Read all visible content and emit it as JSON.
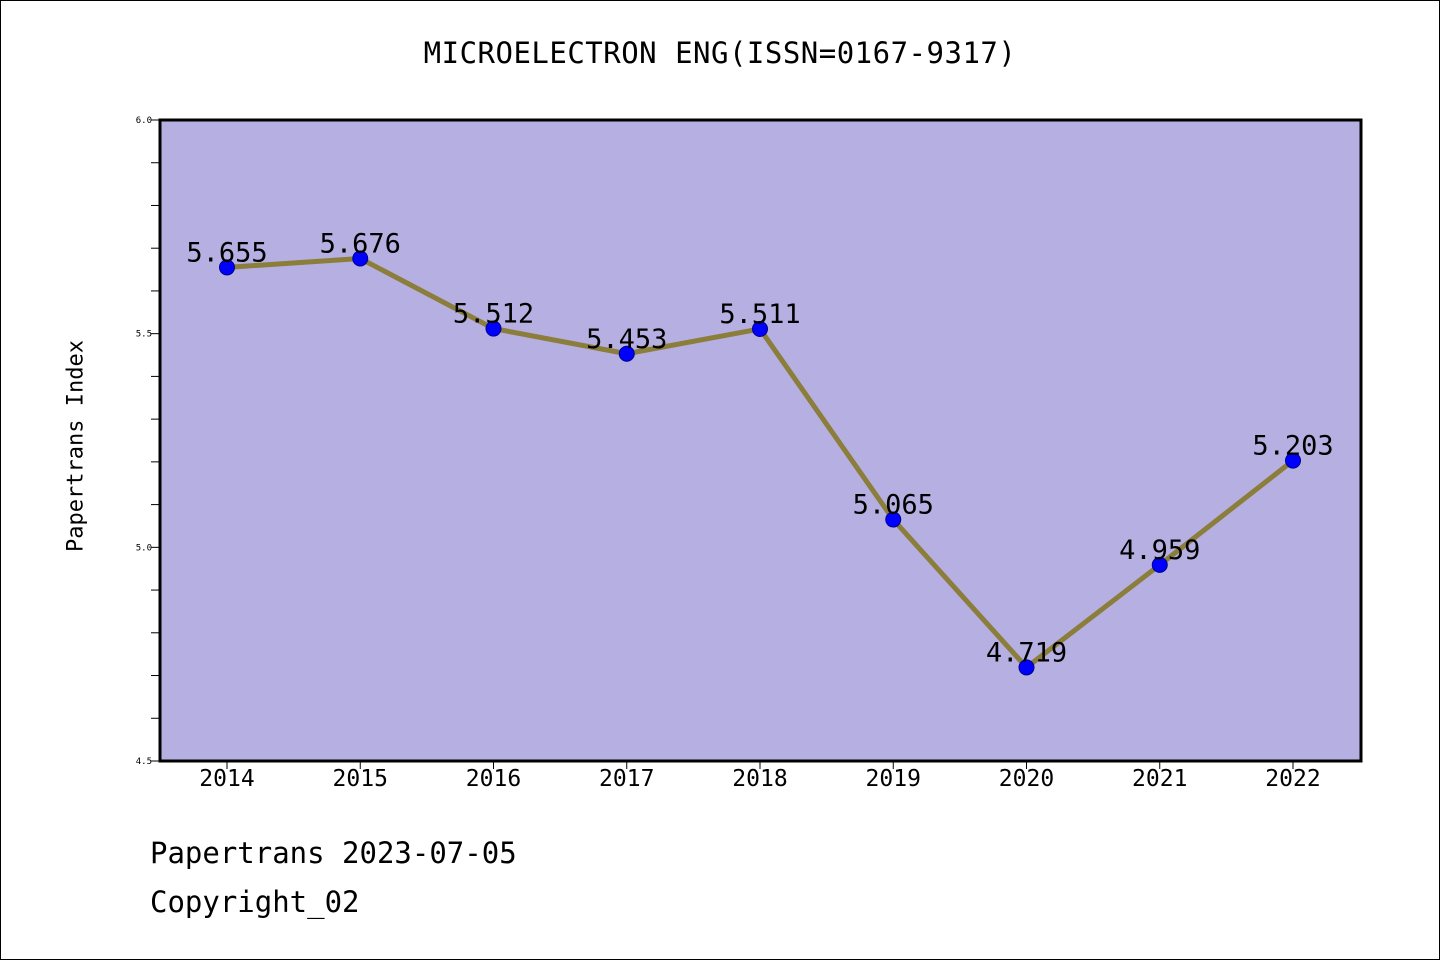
{
  "chart_data": {
    "type": "line",
    "title": "MICROELECTRON ENG(ISSN=0167-9317)",
    "xlabel": "",
    "ylabel": "Papertrans Index",
    "categories": [
      "2014",
      "2015",
      "2016",
      "2017",
      "2018",
      "2019",
      "2020",
      "2021",
      "2022"
    ],
    "values": [
      5.655,
      5.676,
      5.512,
      5.453,
      5.511,
      5.065,
      4.719,
      4.959,
      5.203
    ],
    "data_labels": [
      "5.655",
      "5.676",
      "5.512",
      "5.453",
      "5.511",
      "5.065",
      "4.719",
      "4.959",
      "5.203"
    ],
    "ylim": [
      4.5,
      6.0
    ],
    "yticks": [
      "4.5",
      "5.0",
      "5.5",
      "6.0"
    ],
    "grid": false,
    "legend": "none",
    "colors": {
      "plot_background": "#b5afe2",
      "line": "#8b7d3a",
      "marker": "#0000ff",
      "marker_edge": "#00008b"
    }
  },
  "footer": {
    "source": "Papertrans 2023-07-05",
    "copyright": "Copyright_02"
  }
}
